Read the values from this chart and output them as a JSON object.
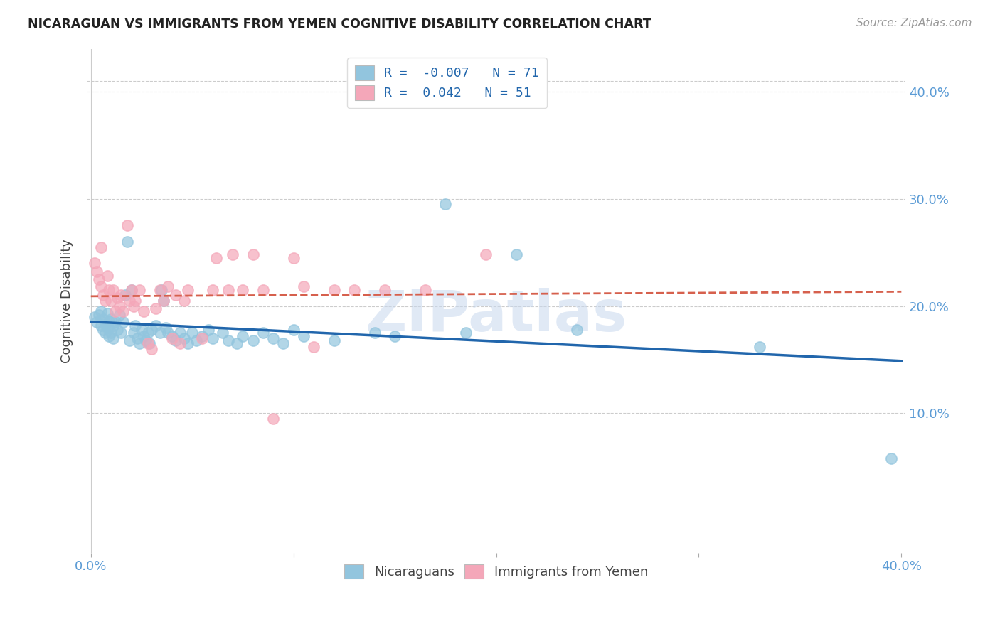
{
  "title": "NICARAGUAN VS IMMIGRANTS FROM YEMEN COGNITIVE DISABILITY CORRELATION CHART",
  "source": "Source: ZipAtlas.com",
  "ylabel": "Cognitive Disability",
  "xlim": [
    -0.002,
    0.402
  ],
  "ylim": [
    -0.03,
    0.44
  ],
  "blue_color": "#92c5de",
  "pink_color": "#f4a7b9",
  "blue_line_color": "#2166ac",
  "pink_line_color": "#d6604d",
  "blue_scatter": [
    [
      0.002,
      0.19
    ],
    [
      0.003,
      0.185
    ],
    [
      0.004,
      0.192
    ],
    [
      0.005,
      0.182
    ],
    [
      0.005,
      0.195
    ],
    [
      0.006,
      0.188
    ],
    [
      0.006,
      0.178
    ],
    [
      0.007,
      0.183
    ],
    [
      0.007,
      0.175
    ],
    [
      0.008,
      0.193
    ],
    [
      0.008,
      0.18
    ],
    [
      0.009,
      0.186
    ],
    [
      0.009,
      0.172
    ],
    [
      0.01,
      0.188
    ],
    [
      0.01,
      0.175
    ],
    [
      0.011,
      0.182
    ],
    [
      0.011,
      0.17
    ],
    [
      0.012,
      0.185
    ],
    [
      0.013,
      0.178
    ],
    [
      0.014,
      0.192
    ],
    [
      0.015,
      0.175
    ],
    [
      0.016,
      0.185
    ],
    [
      0.017,
      0.21
    ],
    [
      0.018,
      0.26
    ],
    [
      0.019,
      0.168
    ],
    [
      0.02,
      0.215
    ],
    [
      0.021,
      0.175
    ],
    [
      0.022,
      0.182
    ],
    [
      0.023,
      0.17
    ],
    [
      0.024,
      0.165
    ],
    [
      0.025,
      0.178
    ],
    [
      0.026,
      0.172
    ],
    [
      0.027,
      0.168
    ],
    [
      0.028,
      0.175
    ],
    [
      0.029,
      0.165
    ],
    [
      0.03,
      0.178
    ],
    [
      0.032,
      0.182
    ],
    [
      0.034,
      0.175
    ],
    [
      0.035,
      0.215
    ],
    [
      0.036,
      0.205
    ],
    [
      0.037,
      0.18
    ],
    [
      0.038,
      0.175
    ],
    [
      0.04,
      0.172
    ],
    [
      0.042,
      0.168
    ],
    [
      0.044,
      0.175
    ],
    [
      0.046,
      0.17
    ],
    [
      0.048,
      0.165
    ],
    [
      0.05,
      0.175
    ],
    [
      0.052,
      0.168
    ],
    [
      0.055,
      0.172
    ],
    [
      0.058,
      0.178
    ],
    [
      0.06,
      0.17
    ],
    [
      0.065,
      0.175
    ],
    [
      0.068,
      0.168
    ],
    [
      0.072,
      0.165
    ],
    [
      0.075,
      0.172
    ],
    [
      0.08,
      0.168
    ],
    [
      0.085,
      0.175
    ],
    [
      0.09,
      0.17
    ],
    [
      0.095,
      0.165
    ],
    [
      0.1,
      0.178
    ],
    [
      0.105,
      0.172
    ],
    [
      0.12,
      0.168
    ],
    [
      0.14,
      0.175
    ],
    [
      0.15,
      0.172
    ],
    [
      0.175,
      0.295
    ],
    [
      0.185,
      0.175
    ],
    [
      0.21,
      0.248
    ],
    [
      0.24,
      0.178
    ],
    [
      0.33,
      0.162
    ],
    [
      0.395,
      0.058
    ]
  ],
  "pink_scatter": [
    [
      0.002,
      0.24
    ],
    [
      0.003,
      0.232
    ],
    [
      0.004,
      0.225
    ],
    [
      0.005,
      0.218
    ],
    [
      0.005,
      0.255
    ],
    [
      0.006,
      0.21
    ],
    [
      0.007,
      0.205
    ],
    [
      0.008,
      0.228
    ],
    [
      0.009,
      0.215
    ],
    [
      0.01,
      0.205
    ],
    [
      0.011,
      0.215
    ],
    [
      0.012,
      0.195
    ],
    [
      0.013,
      0.208
    ],
    [
      0.014,
      0.2
    ],
    [
      0.015,
      0.21
    ],
    [
      0.016,
      0.195
    ],
    [
      0.018,
      0.275
    ],
    [
      0.019,
      0.205
    ],
    [
      0.02,
      0.215
    ],
    [
      0.021,
      0.2
    ],
    [
      0.022,
      0.205
    ],
    [
      0.024,
      0.215
    ],
    [
      0.026,
      0.195
    ],
    [
      0.028,
      0.165
    ],
    [
      0.03,
      0.16
    ],
    [
      0.032,
      0.198
    ],
    [
      0.034,
      0.215
    ],
    [
      0.036,
      0.205
    ],
    [
      0.038,
      0.218
    ],
    [
      0.04,
      0.17
    ],
    [
      0.042,
      0.21
    ],
    [
      0.044,
      0.165
    ],
    [
      0.046,
      0.205
    ],
    [
      0.048,
      0.215
    ],
    [
      0.055,
      0.17
    ],
    [
      0.06,
      0.215
    ],
    [
      0.062,
      0.245
    ],
    [
      0.068,
      0.215
    ],
    [
      0.07,
      0.248
    ],
    [
      0.075,
      0.215
    ],
    [
      0.08,
      0.248
    ],
    [
      0.085,
      0.215
    ],
    [
      0.09,
      0.095
    ],
    [
      0.1,
      0.245
    ],
    [
      0.105,
      0.218
    ],
    [
      0.11,
      0.162
    ],
    [
      0.12,
      0.215
    ],
    [
      0.13,
      0.215
    ],
    [
      0.145,
      0.215
    ],
    [
      0.165,
      0.215
    ],
    [
      0.195,
      0.248
    ]
  ],
  "blue_N": 71,
  "pink_N": 51,
  "blue_R": -0.007,
  "pink_R": 0.042,
  "watermark": "ZIPatlas"
}
